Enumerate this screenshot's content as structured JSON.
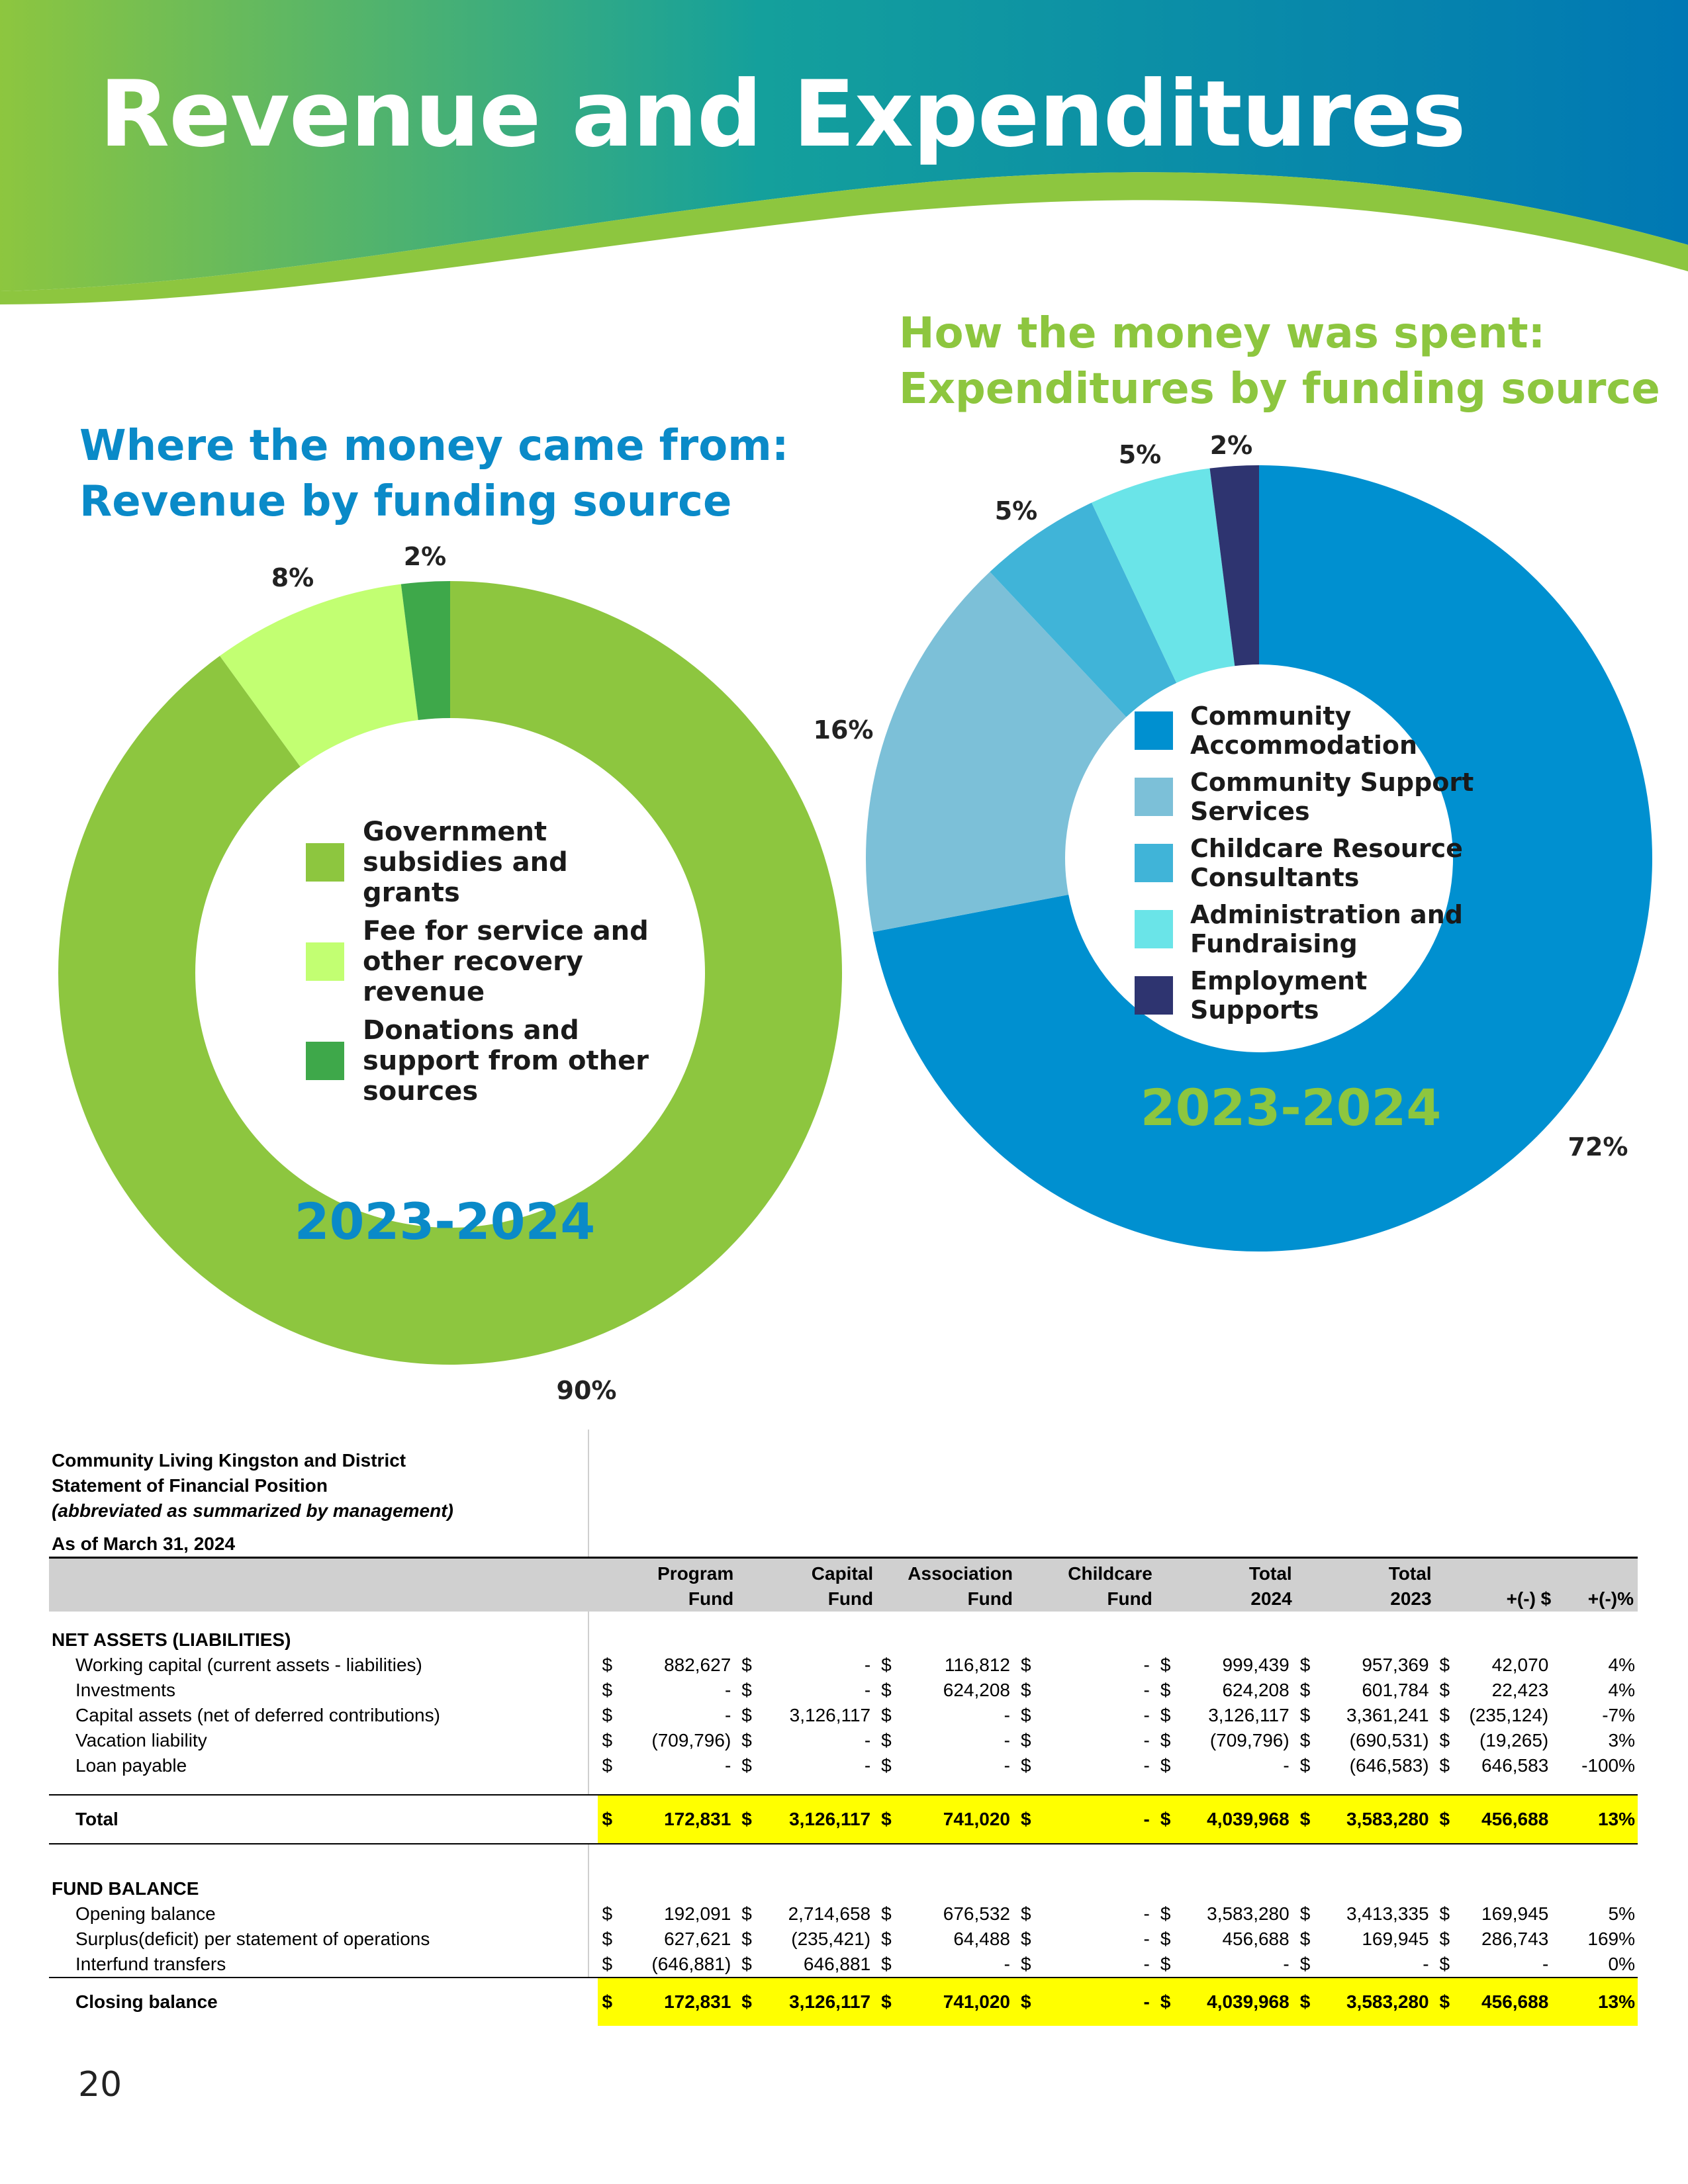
{
  "page_title": "Revenue and Expenditures",
  "colors": {
    "header_blue": "#0080b8",
    "header_green": "#8dc63f",
    "title_blue": "#0a8ac8",
    "title_green": "#8dc63f",
    "highlight": "#ffff00"
  },
  "charts": {
    "revenue": {
      "title_line1": "Where the money came from:",
      "title_line2": "Revenue by funding source",
      "year": "2023-2024"
    },
    "expenditures": {
      "title_line1": "How the money was spent:",
      "title_line2": "Expenditures by funding source",
      "year": "2023-2024"
    }
  },
  "chart_data": [
    {
      "type": "pie",
      "title": "Where the money came from: Revenue by funding source",
      "subtitle": "2023-2024",
      "legend_position": "center",
      "slices": [
        {
          "label": "Government subsidies and grants",
          "value": 90,
          "display": "90%",
          "color": "#8dc63f"
        },
        {
          "label": "Fee for service and other recovery revenue",
          "value": 8,
          "display": "8%",
          "color": "#c2ff72"
        },
        {
          "label": "Donations and support from other sources",
          "value": 2,
          "display": "2%",
          "color": "#3ea84a"
        }
      ]
    },
    {
      "type": "pie",
      "title": "How the money was spent: Expenditures by funding source",
      "subtitle": "2023-2024",
      "legend_position": "center",
      "slices": [
        {
          "label": "Community Accommodation",
          "value": 72,
          "display": "72%",
          "color": "#0090d0"
        },
        {
          "label": "Community Support Services",
          "value": 16,
          "display": "16%",
          "color": "#7cc0d8"
        },
        {
          "label": "Childcare Resource Consultants",
          "value": 5,
          "display": "5%",
          "color": "#40b4d8"
        },
        {
          "label": "Administration and Fundraising",
          "value": 5,
          "display": "5%",
          "color": "#6ae4e8"
        },
        {
          "label": "Employment Supports",
          "value": 2,
          "display": "2%",
          "color": "#2e3470"
        }
      ]
    }
  ],
  "financial": {
    "org": "Community Living Kingston and District",
    "statement": "Statement of Financial Position",
    "note": "(abbreviated as summarized by management)",
    "as_of": "As of March 31, 2024",
    "columns": [
      {
        "line1": "Program",
        "line2": "Fund"
      },
      {
        "line1": "Capital",
        "line2": "Fund"
      },
      {
        "line1": "Association",
        "line2": "Fund"
      },
      {
        "line1": "Childcare",
        "line2": "Fund"
      },
      {
        "line1": "Total",
        "line2": "2024"
      },
      {
        "line1": "Total",
        "line2": "2023"
      },
      {
        "line1": "",
        "line2": "+(-) $"
      },
      {
        "line1": "",
        "line2": "+(-)%"
      }
    ],
    "sections": [
      {
        "heading": "NET ASSETS (LIABILITIES)",
        "rows": [
          {
            "label": "Working capital (current assets - liabilities)",
            "values": [
              "882,627",
              "-",
              "116,812",
              "-",
              "999,439",
              "957,369",
              "42,070"
            ],
            "pct": "4%"
          },
          {
            "label": "Investments",
            "values": [
              "-",
              "-",
              "624,208",
              "-",
              "624,208",
              "601,784",
              "22,423"
            ],
            "pct": "4%"
          },
          {
            "label": "Capital assets (net of deferred contributions)",
            "values": [
              "-",
              "3,126,117",
              "-",
              "-",
              "3,126,117",
              "3,361,241",
              "(235,124)"
            ],
            "pct": "-7%"
          },
          {
            "label": "Vacation liability",
            "values": [
              "(709,796)",
              "-",
              "-",
              "-",
              "(709,796)",
              "(690,531)",
              "(19,265)"
            ],
            "pct": "3%"
          },
          {
            "label": "Loan payable",
            "values": [
              "-",
              "-",
              "-",
              "-",
              "-",
              "(646,583)",
              "646,583"
            ],
            "pct": "-100%"
          }
        ],
        "total": {
          "label": "Total",
          "values": [
            "172,831",
            "3,126,117",
            "741,020",
            "-",
            "4,039,968",
            "3,583,280",
            "456,688"
          ],
          "pct": "13%"
        }
      },
      {
        "heading": "FUND BALANCE",
        "rows": [
          {
            "label": "Opening balance",
            "values": [
              "192,091",
              "2,714,658",
              "676,532",
              "-",
              "3,583,280",
              "3,413,335",
              "169,945"
            ],
            "pct": "5%"
          },
          {
            "label": "Surplus(deficit) per statement of operations",
            "values": [
              "627,621",
              "(235,421)",
              "64,488",
              "-",
              "456,688",
              "169,945",
              "286,743"
            ],
            "pct": "169%"
          },
          {
            "label": "Interfund transfers",
            "values": [
              "(646,881)",
              "646,881",
              "-",
              "-",
              "-",
              "-",
              "-"
            ],
            "pct": "0%"
          }
        ],
        "total": {
          "label": "Closing balance",
          "values": [
            "172,831",
            "3,126,117",
            "741,020",
            "-",
            "4,039,968",
            "3,583,280",
            "456,688"
          ],
          "pct": "13%"
        }
      }
    ]
  },
  "page_number": "20"
}
